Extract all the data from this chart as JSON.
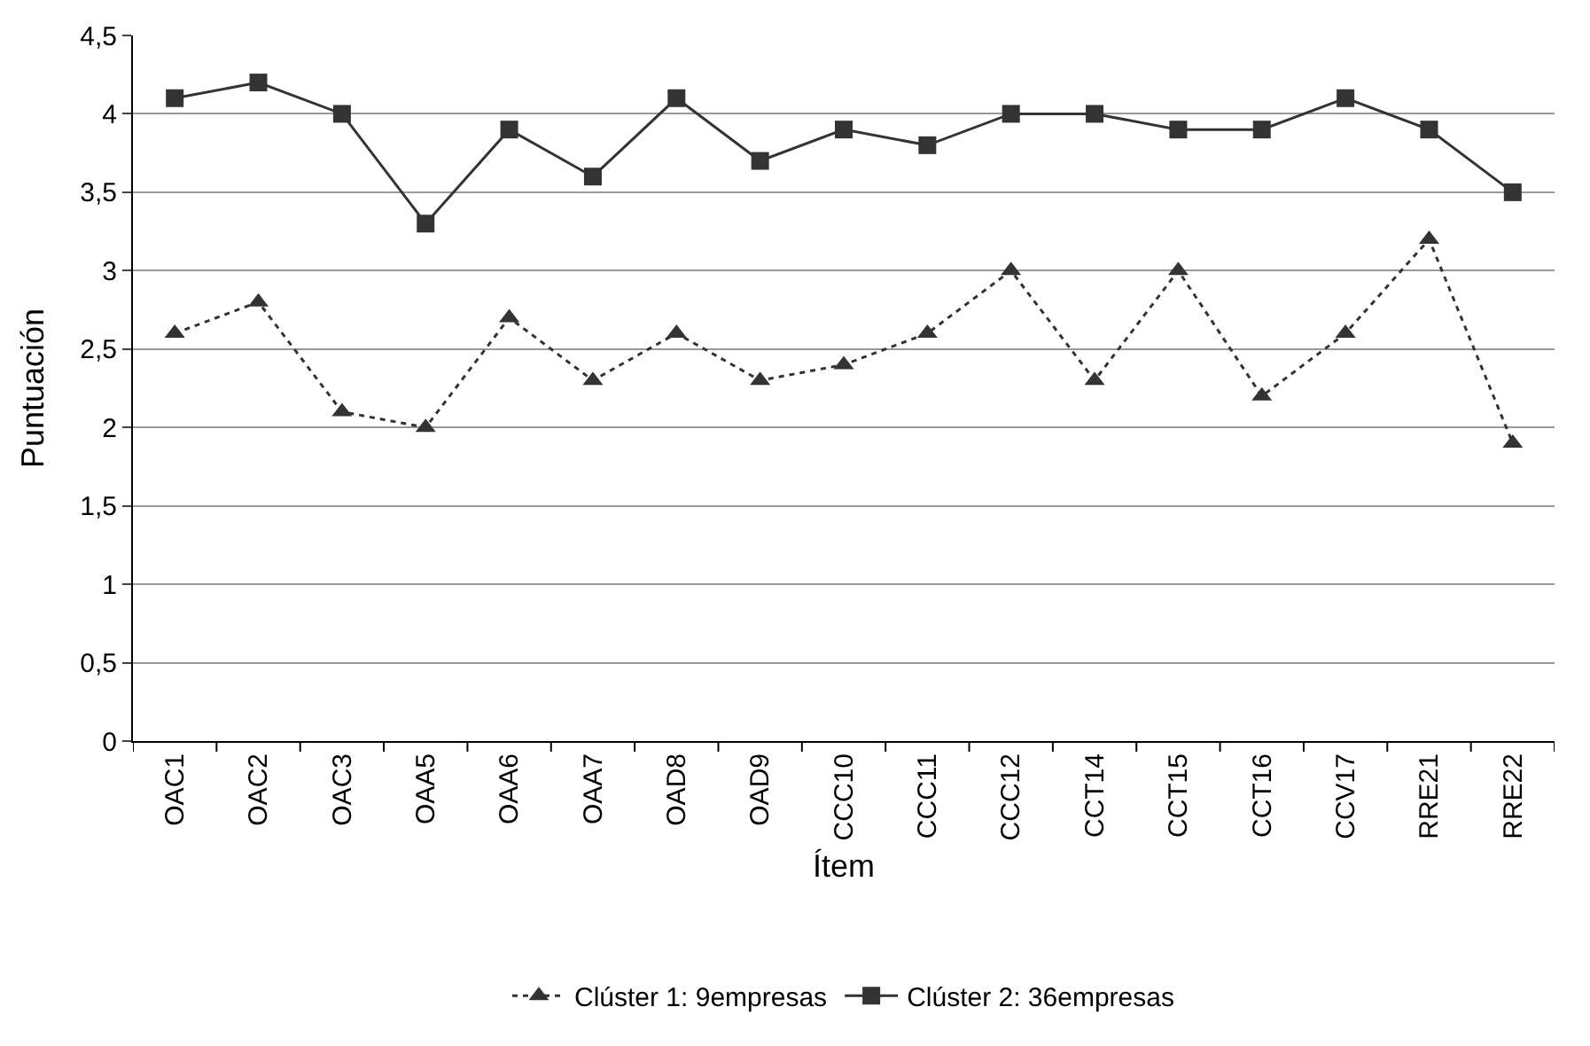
{
  "chart_data": {
    "type": "line",
    "xlabel": "Ítem",
    "ylabel": "Puntuación",
    "categories": [
      "OAC1",
      "OAC2",
      "OAC3",
      "OAA5",
      "OAA6",
      "OAA7",
      "OAD8",
      "OAD9",
      "CCC10",
      "CCC11",
      "CCC12",
      "CCT14",
      "CCT15",
      "CCT16",
      "CCV17",
      "RRE21",
      "RRE22"
    ],
    "series": [
      {
        "name": "Clúster 1: 9empresas",
        "color": "#333333",
        "marker": "triangle",
        "line_style": "dotted",
        "values": [
          2.6,
          2.8,
          2.1,
          2.0,
          2.7,
          2.3,
          2.6,
          2.3,
          2.4,
          2.6,
          3.0,
          2.3,
          3.0,
          2.2,
          2.6,
          3.2,
          1.9
        ]
      },
      {
        "name": "Clúster 2: 36empresas",
        "color": "#333333",
        "marker": "square",
        "line_style": "solid",
        "values": [
          4.1,
          4.2,
          4.0,
          3.3,
          3.9,
          3.6,
          4.1,
          3.7,
          3.9,
          3.8,
          4.0,
          4.0,
          3.9,
          3.9,
          4.1,
          3.9,
          3.5
        ]
      }
    ],
    "ylim": [
      0,
      4.5
    ],
    "yticks": [
      0,
      {
        "value": 0.5,
        "label": "0,5"
      },
      1,
      {
        "value": 1.5,
        "label": "1,5"
      },
      2,
      {
        "value": 2.5,
        "label": "2,5"
      },
      3,
      {
        "value": 3.5,
        "label": "3,5"
      },
      4,
      {
        "value": 4.5,
        "label": "4,5"
      }
    ],
    "grid": "y",
    "legend": "bottom"
  }
}
